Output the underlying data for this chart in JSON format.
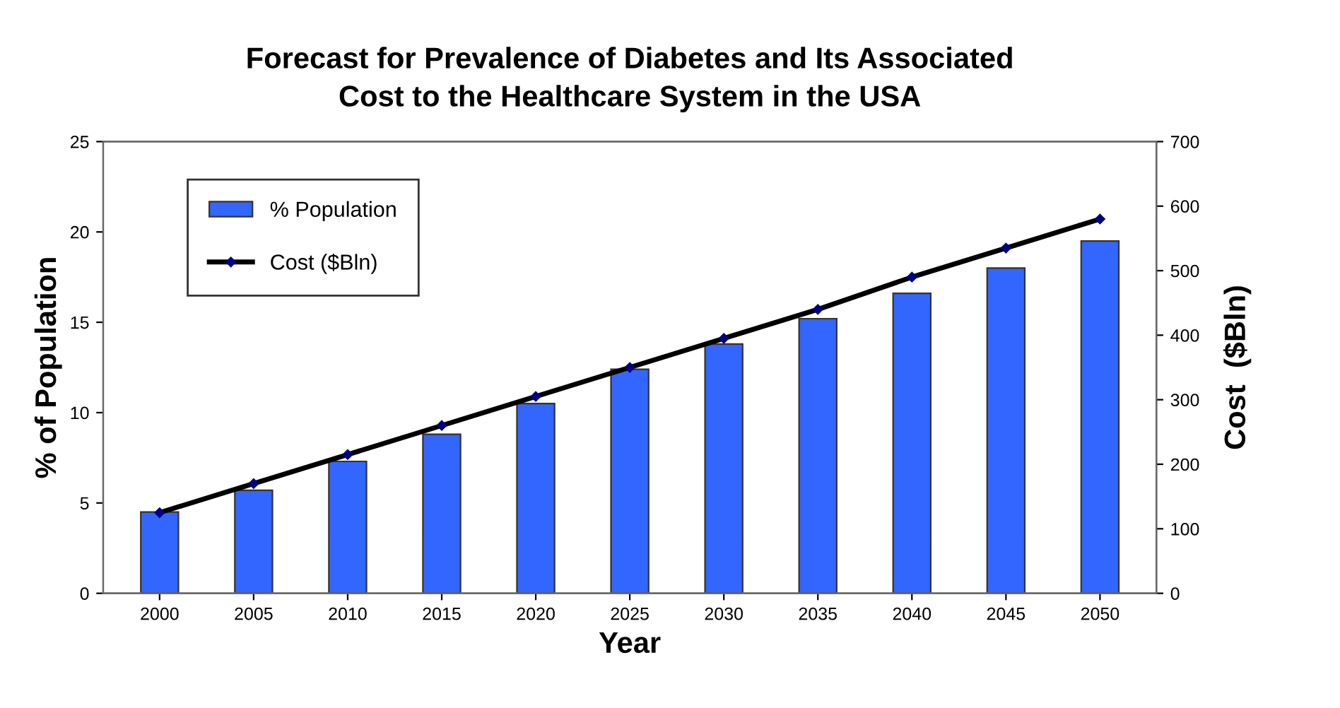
{
  "chart_data": {
    "type": "bar",
    "title": "Forecast for Prevalence of Diabetes and Its Associated\nCost to the Healthcare System in the USA",
    "xlabel": "Year",
    "ylabel": "% of Population",
    "y2label": "Cost  ($Bln)",
    "categories": [
      "2000",
      "2005",
      "2010",
      "2015",
      "2020",
      "2025",
      "2030",
      "2035",
      "2040",
      "2045",
      "2050"
    ],
    "series": [
      {
        "name": "% Population",
        "color": "#3366ff",
        "values": [
          4.5,
          5.7,
          7.3,
          8.8,
          10.5,
          12.4,
          13.8,
          15.2,
          16.6,
          18.0,
          19.5
        ]
      },
      {
        "name": "Cost ($Bln)",
        "type": "line",
        "axis": "y2",
        "color": "#000000",
        "marker": "diamond",
        "values": [
          125,
          170,
          215,
          260,
          305,
          350,
          395,
          440,
          490,
          535,
          580
        ]
      }
    ],
    "ylim": [
      0,
      25
    ],
    "yticks": [
      0,
      5,
      10,
      15,
      20,
      25
    ],
    "y2lim": [
      0,
      700
    ],
    "y2ticks": [
      0,
      100,
      200,
      300,
      400,
      500,
      600,
      700
    ],
    "legend": "top left",
    "grid": false
  }
}
